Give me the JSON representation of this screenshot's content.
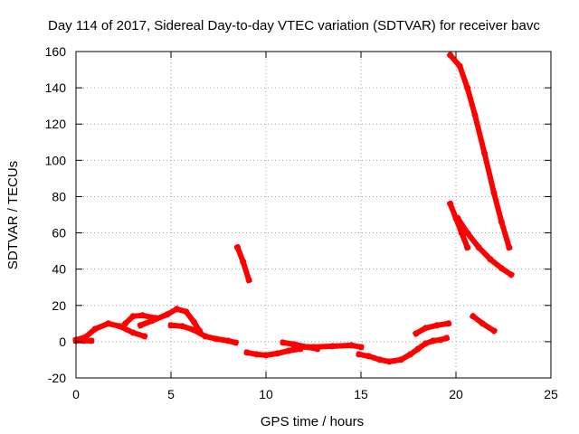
{
  "chart_data": {
    "type": "scatter",
    "title": "Day 114 of 2017, Sidereal Day-to-day VTEC variation (SDTVAR) for receiver bavc",
    "xlabel": "GPS time / hours",
    "ylabel": "SDTVAR / TECUs",
    "xlim": [
      0,
      25
    ],
    "ylim": [
      -20,
      160
    ],
    "xticks": [
      0,
      5,
      10,
      15,
      20,
      25
    ],
    "yticks": [
      -20,
      0,
      20,
      40,
      60,
      80,
      100,
      120,
      140,
      160
    ],
    "grid": true,
    "series_color": "#ff0000",
    "segments": [
      {
        "name": "arc-1",
        "points": [
          [
            0.0,
            1.0
          ],
          [
            0.5,
            2.5
          ],
          [
            1.0,
            7.0
          ],
          [
            1.7,
            10.0
          ],
          [
            2.3,
            8.5
          ],
          [
            3.0,
            5.0
          ],
          [
            3.6,
            3.0
          ]
        ]
      },
      {
        "name": "arc-2",
        "points": [
          [
            0.0,
            0.5
          ],
          [
            0.4,
            0.5
          ],
          [
            0.8,
            0.5
          ]
        ]
      },
      {
        "name": "arc-3",
        "points": [
          [
            2.6,
            10.0
          ],
          [
            3.0,
            14.0
          ],
          [
            3.5,
            14.5
          ],
          [
            4.2,
            13.0
          ]
        ]
      },
      {
        "name": "arc-4",
        "points": [
          [
            3.4,
            9.0
          ],
          [
            4.0,
            11.5
          ],
          [
            4.8,
            15.0
          ],
          [
            5.3,
            18.0
          ],
          [
            5.8,
            16.5
          ],
          [
            6.2,
            11.0
          ],
          [
            6.5,
            6.0
          ]
        ]
      },
      {
        "name": "arc-5",
        "points": [
          [
            5.0,
            9.0
          ],
          [
            5.6,
            8.5
          ],
          [
            6.2,
            6.5
          ],
          [
            6.8,
            3.0
          ],
          [
            7.4,
            1.5
          ],
          [
            8.0,
            0.5
          ],
          [
            8.4,
            -0.5
          ]
        ]
      },
      {
        "name": "arc-6",
        "points": [
          [
            8.5,
            52.0
          ],
          [
            8.8,
            44.0
          ],
          [
            9.1,
            34.0
          ]
        ]
      },
      {
        "name": "arc-7",
        "points": [
          [
            9.0,
            -6.0
          ],
          [
            9.5,
            -7.0
          ],
          [
            10.0,
            -7.5
          ],
          [
            10.6,
            -6.5
          ],
          [
            11.2,
            -5.0
          ],
          [
            11.8,
            -4.0
          ]
        ]
      },
      {
        "name": "arc-8",
        "points": [
          [
            10.9,
            -0.5
          ],
          [
            11.5,
            -1.5
          ],
          [
            12.2,
            -3.0
          ],
          [
            12.7,
            -4.0
          ]
        ]
      },
      {
        "name": "arc-9",
        "points": [
          [
            11.5,
            -3.0
          ],
          [
            12.5,
            -3.0
          ],
          [
            13.5,
            -2.5
          ],
          [
            14.5,
            -2.0
          ],
          [
            15.0,
            -3.0
          ]
        ]
      },
      {
        "name": "arc-10",
        "points": [
          [
            14.9,
            -7.0
          ],
          [
            15.4,
            -8.0
          ],
          [
            16.0,
            -10.0
          ],
          [
            16.5,
            -11.0
          ],
          [
            17.1,
            -10.0
          ],
          [
            17.6,
            -7.0
          ],
          [
            18.0,
            -4.0
          ],
          [
            18.4,
            -1.0
          ],
          [
            18.8,
            0.5
          ],
          [
            19.2,
            1.0
          ],
          [
            19.5,
            2.0
          ]
        ]
      },
      {
        "name": "arc-11",
        "points": [
          [
            17.9,
            4.5
          ],
          [
            18.4,
            7.5
          ],
          [
            19.0,
            9.0
          ],
          [
            19.6,
            10.0
          ]
        ]
      },
      {
        "name": "arc-12",
        "points": [
          [
            19.7,
            158.0
          ],
          [
            20.2,
            152.0
          ],
          [
            20.6,
            140.0
          ],
          [
            21.0,
            125.0
          ],
          [
            21.5,
            104.0
          ],
          [
            22.0,
            82.0
          ],
          [
            22.4,
            66.0
          ],
          [
            22.8,
            52.0
          ]
        ]
      },
      {
        "name": "arc-13",
        "points": [
          [
            19.7,
            76.0
          ],
          [
            20.0,
            68.0
          ],
          [
            20.3,
            60.0
          ],
          [
            20.6,
            52.0
          ]
        ]
      },
      {
        "name": "arc-14",
        "points": [
          [
            20.1,
            68.0
          ],
          [
            20.6,
            60.0
          ],
          [
            21.2,
            52.0
          ],
          [
            21.8,
            45.5
          ],
          [
            22.4,
            40.5
          ],
          [
            22.9,
            37.0
          ]
        ]
      },
      {
        "name": "arc-15",
        "points": [
          [
            20.9,
            14.0
          ],
          [
            21.4,
            10.0
          ],
          [
            22.0,
            6.0
          ]
        ]
      }
    ]
  }
}
